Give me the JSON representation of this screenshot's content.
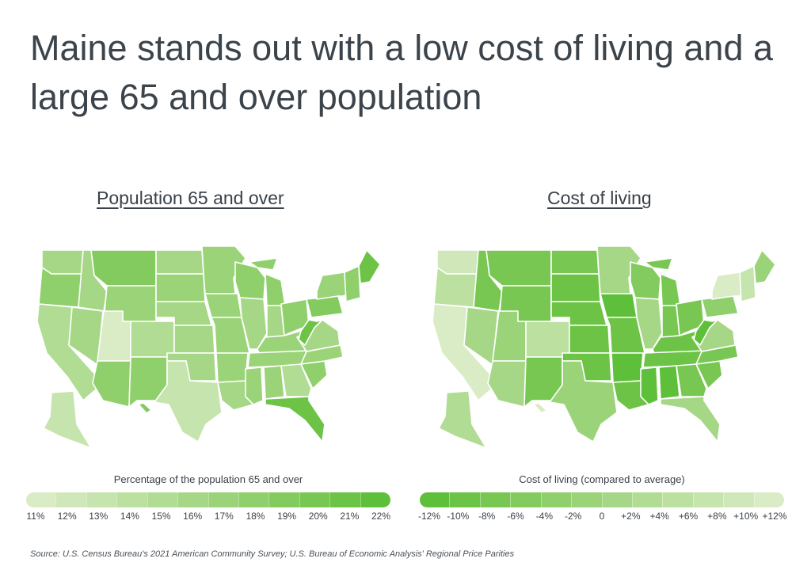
{
  "title": "Maine stands out with a low cost of living and a large 65 and over population",
  "maps": [
    {
      "id": "pop65",
      "title": "Population 65 and over",
      "legend_title": "Percentage of the population 65 and over",
      "legend_ticks": [
        "11%",
        "12%",
        "13%",
        "14%",
        "15%",
        "16%",
        "17%",
        "18%",
        "19%",
        "20%",
        "21%",
        "22%"
      ],
      "legend_colors": [
        "#d9ecc5",
        "#d0e8b9",
        "#c6e4ad",
        "#bce0a0",
        "#b1dc93",
        "#a6d786",
        "#9bd379",
        "#8fcf6c",
        "#84cb5f",
        "#78c753",
        "#6cc346",
        "#5ebf3a"
      ],
      "state_levels": {
        "WA": 16,
        "OR": 18,
        "CA": 15,
        "NV": 16,
        "ID": 16,
        "MT": 19,
        "WY": 17,
        "UT": 11,
        "CO": 15,
        "AZ": 18,
        "NM": 18,
        "ND": 16,
        "SD": 17,
        "NE": 16,
        "KS": 16,
        "OK": 16,
        "TX": 13,
        "MN": 17,
        "IA": 17,
        "MO": 17,
        "AR": 17,
        "LA": 16,
        "WI": 18,
        "IL": 16,
        "MI": 18,
        "IN": 16,
        "OH": 18,
        "KY": 17,
        "TN": 17,
        "MS": 17,
        "AL": 17,
        "GA": 15,
        "FL": 21,
        "SC": 18,
        "NC": 17,
        "VA": 16,
        "WV": 21,
        "PA": 19,
        "NY": 17,
        "ME": 21,
        "NEW_ENG": 18,
        "AK": 13,
        "HI": 19
      }
    },
    {
      "id": "col",
      "title": "Cost of living",
      "legend_title": "Cost of living (compared to average)",
      "legend_ticks": [
        "-12%",
        "-10%",
        "-8%",
        "-6%",
        "-4%",
        "-2%",
        "0",
        "+2%",
        "+4%",
        "+6%",
        "+8%",
        "+10%",
        "+12%"
      ],
      "legend_colors": [
        "#5ebf3a",
        "#6cc346",
        "#78c753",
        "#84cb5f",
        "#8fcf6c",
        "#9bd379",
        "#a6d786",
        "#b1dc93",
        "#bce0a0",
        "#c6e4ad",
        "#d0e8b9",
        "#d9ecc5"
      ],
      "state_levels": {
        "WA": 8,
        "OR": 4,
        "CA": 12,
        "NV": 0,
        "ID": -8,
        "MT": -8,
        "WY": -8,
        "UT": -2,
        "CO": 4,
        "AZ": 0,
        "NM": -8,
        "ND": -8,
        "SD": -10,
        "NE": -10,
        "KS": -10,
        "OK": -10,
        "TX": -2,
        "MN": 0,
        "IA": -12,
        "MO": -10,
        "AR": -12,
        "LA": -10,
        "WI": -6,
        "IL": 0,
        "MI": -8,
        "IN": -8,
        "OH": -8,
        "KY": -10,
        "TN": -10,
        "MS": -12,
        "AL": -12,
        "GA": -8,
        "FL": 0,
        "SC": -8,
        "NC": -8,
        "VA": 0,
        "WV": -12,
        "PA": -4,
        "NY": 10,
        "ME": -2,
        "NEW_ENG": 6,
        "AK": 2,
        "HI": 12
      }
    }
  ],
  "source": "Source:  U.S. Census Bureau's 2021 American Community Survey; U.S. Bureau of Economic Analysis' Regional Price Parities"
}
